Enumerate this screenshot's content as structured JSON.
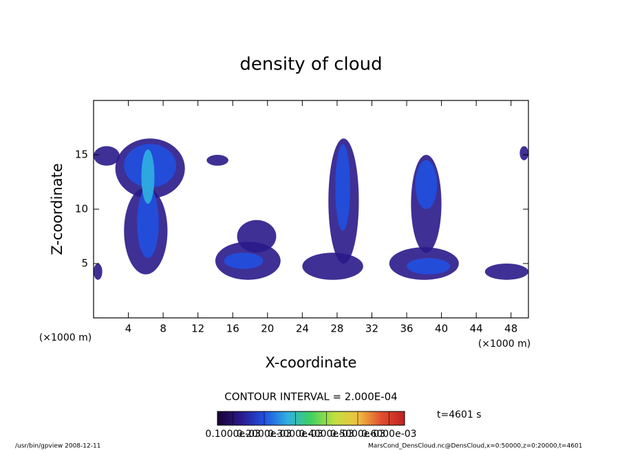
{
  "chart_data": {
    "type": "contour",
    "title": "density of cloud",
    "x_label": "X-coordinate",
    "y_label": "Z-coordinate",
    "x_unit": "(×1000 m)",
    "y_unit": "(×1000 m)",
    "xlim": [
      0,
      50
    ],
    "ylim": [
      0,
      20
    ],
    "xticks": [
      4,
      8,
      12,
      16,
      20,
      24,
      28,
      32,
      36,
      40,
      44,
      48
    ],
    "yticks": [
      5,
      10,
      15
    ],
    "contour_note": "CONTOUR INTERVAL = 2.000E-04",
    "time_label": "t=4601 s",
    "colorbar": {
      "lim": [
        5e-05,
        0.00065
      ],
      "colors": [
        "#1a0033",
        "#2a1a8a",
        "#2050e0",
        "#30b0e0",
        "#40d060",
        "#c0e040",
        "#f0c040",
        "#e05030",
        "#c02020"
      ],
      "ticks": [
        {
          "value": 0.0001,
          "label": "0.1000e-03"
        },
        {
          "value": 0.0002,
          "label": "0.2000e-03"
        },
        {
          "value": 0.0003,
          "label": "0.3000e-03"
        },
        {
          "value": 0.0004,
          "label": "0.4000e-03"
        },
        {
          "value": 0.0005,
          "label": "0.5000e-03"
        },
        {
          "value": 0.0006,
          "label": "0.6000e-03"
        }
      ]
    },
    "regions": [
      {
        "x": [
          0,
          3
        ],
        "z": [
          14,
          15.8
        ],
        "density": 0.0001
      },
      {
        "x": [
          0,
          1
        ],
        "z": [
          3.5,
          5
        ],
        "density": 0.0001
      },
      {
        "x": [
          2.5,
          10.5
        ],
        "z": [
          11,
          16.5
        ],
        "density": 0.0001
      },
      {
        "x": [
          3.5,
          8.5
        ],
        "z": [
          4,
          12
        ],
        "density": 0.0001
      },
      {
        "x": [
          3.5,
          9.5
        ],
        "z": [
          12,
          16
        ],
        "density": 0.0002
      },
      {
        "x": [
          5,
          7.5
        ],
        "z": [
          5.5,
          12
        ],
        "density": 0.0002
      },
      {
        "x": [
          5.5,
          7
        ],
        "z": [
          10.5,
          15.5
        ],
        "density": 0.0003
      },
      {
        "x": [
          13,
          15.5
        ],
        "z": [
          14,
          15
        ],
        "density": 0.0001
      },
      {
        "x": [
          14,
          21.5
        ],
        "z": [
          3.5,
          7
        ],
        "density": 0.0001
      },
      {
        "x": [
          16.5,
          21
        ],
        "z": [
          6,
          9
        ],
        "density": 0.0001
      },
      {
        "x": [
          15,
          19.5
        ],
        "z": [
          4.5,
          6
        ],
        "density": 0.0002
      },
      {
        "x": [
          24,
          31
        ],
        "z": [
          3.5,
          6
        ],
        "density": 0.0001
      },
      {
        "x": [
          27,
          30.5
        ],
        "z": [
          5,
          16.5
        ],
        "density": 0.0001
      },
      {
        "x": [
          27.8,
          29.5
        ],
        "z": [
          8,
          16
        ],
        "density": 0.0002
      },
      {
        "x": [
          34,
          42
        ],
        "z": [
          3.5,
          6.5
        ],
        "density": 0.0001
      },
      {
        "x": [
          36.5,
          40
        ],
        "z": [
          6,
          15
        ],
        "density": 0.0001
      },
      {
        "x": [
          37,
          39.5
        ],
        "z": [
          10,
          14.5
        ],
        "density": 0.0002
      },
      {
        "x": [
          36,
          41
        ],
        "z": [
          4,
          5.5
        ],
        "density": 0.0002
      },
      {
        "x": [
          45,
          50
        ],
        "z": [
          3.5,
          5
        ],
        "density": 0.0001
      },
      {
        "x": [
          49,
          50
        ],
        "z": [
          14.5,
          15.8
        ],
        "density": 0.0001
      }
    ],
    "footer_left": "/usr/bin/gpview   2008-12-11",
    "footer_right": "MarsCond_DensCloud.nc@DensCloud,x=0:50000,z=0:20000,t=4601"
  }
}
